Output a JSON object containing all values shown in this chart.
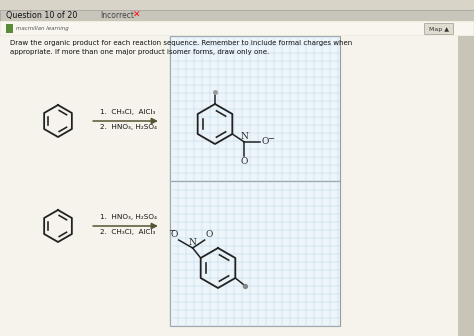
{
  "bg_color": "#eae8de",
  "tab_bg": "#c8c6bc",
  "tab_text": "Question 10 of 20",
  "incorrect_text": "Incorrect",
  "header_bg": "#f5f3eb",
  "logo_text": "macmillan learning",
  "map_text": "Map ▲",
  "instruction_text": "Draw the organic product for each reaction sequence. Remember to include formal charges when\nappropriate. If more than one major product isomer forms, draw only one.",
  "reaction1_line1": "1.  CH₃Cl,  AlCl₃",
  "reaction1_line2": "2.  HNO₃, H₂SO₄",
  "reaction2_line1": "1.  HNO₃, H₂SO₄",
  "reaction2_line2": "2.  CH₃Cl,  AlCl₃",
  "grid_color": "#b8d8e8",
  "box_bg": "#eef5fa",
  "box_border": "#999999",
  "mol_color": "#222222",
  "arrow_color": "#555533"
}
